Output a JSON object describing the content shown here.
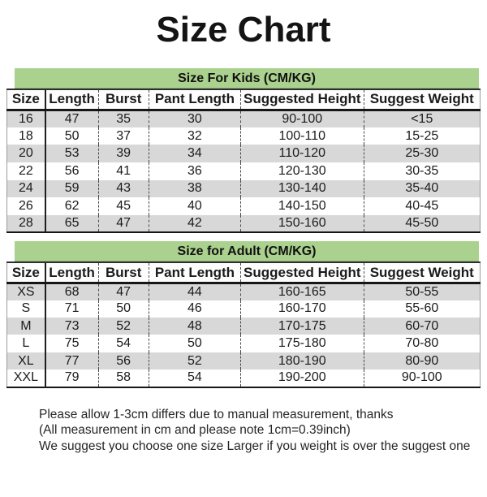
{
  "page": {
    "title": "Size Chart"
  },
  "colors": {
    "banner_green": "#aad18e",
    "row_alt": "#d8d8d8",
    "border_dark": "#161616"
  },
  "tables": [
    {
      "banner": "Size For Kids  (CM/KG)",
      "headers": [
        "Size",
        "Length",
        "Burst",
        "Pant Length",
        "Suggested Height",
        "Suggest Weight"
      ],
      "rows": [
        [
          "16",
          "47",
          "35",
          "30",
          "90-100",
          "<15"
        ],
        [
          "18",
          "50",
          "37",
          "32",
          "100-110",
          "15-25"
        ],
        [
          "20",
          "53",
          "39",
          "34",
          "110-120",
          "25-30"
        ],
        [
          "22",
          "56",
          "41",
          "36",
          "120-130",
          "30-35"
        ],
        [
          "24",
          "59",
          "43",
          "38",
          "130-140",
          "35-40"
        ],
        [
          "26",
          "62",
          "45",
          "40",
          "140-150",
          "40-45"
        ],
        [
          "28",
          "65",
          "47",
          "42",
          "150-160",
          "45-50"
        ]
      ]
    },
    {
      "banner": "Size for Adult  (CM/KG)",
      "headers": [
        "Size",
        "Length",
        "Burst",
        "Pant Length",
        "Suggested Height",
        "Suggest Weight"
      ],
      "rows": [
        [
          "XS",
          "68",
          "47",
          "44",
          "160-165",
          "50-55"
        ],
        [
          "S",
          "71",
          "50",
          "46",
          "160-170",
          "55-60"
        ],
        [
          "M",
          "73",
          "52",
          "48",
          "170-175",
          "60-70"
        ],
        [
          "L",
          "75",
          "54",
          "50",
          "175-180",
          "70-80"
        ],
        [
          "XL",
          "77",
          "56",
          "52",
          "180-190",
          "80-90"
        ],
        [
          "XXL",
          "79",
          "58",
          "54",
          "190-200",
          "90-100"
        ]
      ]
    }
  ],
  "footer": {
    "lines": [
      "Please allow 1-3cm differs due to manual measurement, thanks",
      "(All measurement in cm and please note 1cm=0.39inch)",
      "We suggest you choose one size Larger if you weight is over the suggest one"
    ]
  }
}
